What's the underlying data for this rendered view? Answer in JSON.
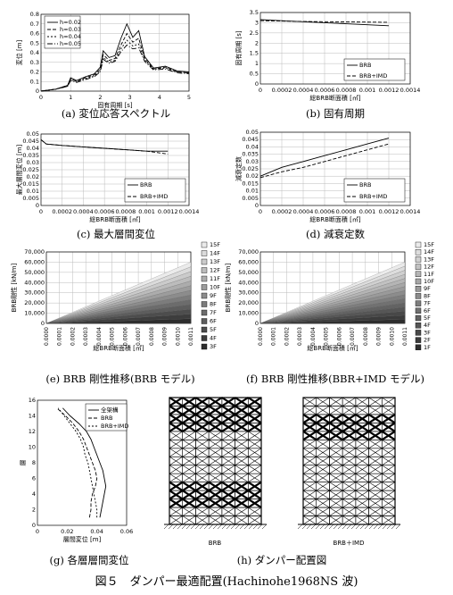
{
  "figure_title": "図５　ダンパー最適配置(Hachinohe1968NS 波)",
  "captions": {
    "a": "(a) 変位応答スペクトル",
    "b": "(b) 固有周期",
    "c": "(c) 最大層間変位",
    "d": "(d) 減衰定数",
    "e": "(e) BRB 剛性推移(BRB モデル)",
    "f": "(f) BRB 剛性推移(BBR+IMD モデル)",
    "g": "(g) 各層層間変位",
    "h": "(h) ダンパー配置図"
  },
  "frame_labels": [
    "BRB",
    "BRB＋IMD"
  ],
  "colors": {
    "grid": "#bbbbbb",
    "line": "#000000"
  },
  "chart_data": [
    {
      "id": "a",
      "type": "line",
      "xlabel": "固有周期 [s]",
      "ylabel": "変位 [m]",
      "xlim": [
        0,
        5
      ],
      "ylim": [
        0,
        0.8
      ],
      "xticks": [
        "0",
        "1",
        "2",
        "3",
        "4",
        "5"
      ],
      "yticks": [
        "0",
        "0.1",
        "0.2",
        "0.3",
        "0.4",
        "0.5",
        "0.6",
        "0.7",
        "0.8"
      ],
      "legend": "top-left",
      "grid": true,
      "series": [
        {
          "name": "h=0.02",
          "x": [
            0,
            0.5,
            0.9,
            1.0,
            1.2,
            1.5,
            1.8,
            2.0,
            2.1,
            2.3,
            2.5,
            2.7,
            2.9,
            3.1,
            3.3,
            3.5,
            3.8,
            4.2,
            4.6,
            5.0
          ],
          "y": [
            0,
            0.02,
            0.06,
            0.14,
            0.11,
            0.15,
            0.18,
            0.25,
            0.42,
            0.35,
            0.37,
            0.55,
            0.7,
            0.56,
            0.63,
            0.36,
            0.24,
            0.26,
            0.21,
            0.2
          ]
        },
        {
          "name": "h=0.03",
          "x": [
            0,
            0.5,
            0.9,
            1.0,
            1.2,
            1.5,
            1.8,
            2.0,
            2.1,
            2.3,
            2.5,
            2.7,
            2.9,
            3.1,
            3.3,
            3.5,
            3.8,
            4.2,
            4.6,
            5.0
          ],
          "y": [
            0,
            0.02,
            0.06,
            0.13,
            0.1,
            0.14,
            0.17,
            0.23,
            0.38,
            0.32,
            0.34,
            0.48,
            0.6,
            0.51,
            0.55,
            0.34,
            0.23,
            0.25,
            0.2,
            0.19
          ]
        },
        {
          "name": "h=0.04",
          "x": [
            0,
            0.5,
            0.9,
            1.0,
            1.2,
            1.5,
            1.8,
            2.0,
            2.1,
            2.3,
            2.5,
            2.7,
            2.9,
            3.1,
            3.3,
            3.5,
            3.8,
            4.2,
            4.6,
            5.0
          ],
          "y": [
            0,
            0.02,
            0.05,
            0.12,
            0.1,
            0.13,
            0.16,
            0.21,
            0.35,
            0.3,
            0.32,
            0.44,
            0.53,
            0.47,
            0.49,
            0.32,
            0.23,
            0.24,
            0.2,
            0.19
          ]
        },
        {
          "name": "h=0.05",
          "x": [
            0,
            0.5,
            0.9,
            1.0,
            1.2,
            1.5,
            1.8,
            2.0,
            2.1,
            2.3,
            2.5,
            2.7,
            2.9,
            3.1,
            3.3,
            3.5,
            3.8,
            4.2,
            4.6,
            5.0
          ],
          "y": [
            0,
            0.02,
            0.05,
            0.11,
            0.09,
            0.12,
            0.15,
            0.2,
            0.33,
            0.29,
            0.31,
            0.41,
            0.48,
            0.44,
            0.45,
            0.31,
            0.22,
            0.23,
            0.19,
            0.18
          ]
        }
      ]
    },
    {
      "id": "b",
      "type": "line",
      "xlabel": "総BRB断面積 [㎡]",
      "ylabel": "固有周期 [s]",
      "xlim": [
        0,
        0.0014
      ],
      "ylim": [
        0,
        3.5
      ],
      "xticks": [
        "0",
        "0.0002",
        "0.0004",
        "0.0006",
        "0.0008",
        "0.001",
        "0.0012",
        "0.0014"
      ],
      "yticks": [
        "0",
        "0.5",
        "1",
        "1.5",
        "2",
        "2.5",
        "3",
        "3.5"
      ],
      "legend": "bottom-right",
      "grid": true,
      "series": [
        {
          "name": "BRB",
          "x": [
            0,
            0.0002,
            0.0004,
            0.0006,
            0.0008,
            0.001,
            0.0012
          ],
          "y": [
            3.15,
            3.1,
            3.05,
            3.0,
            2.95,
            2.9,
            2.85
          ]
        },
        {
          "name": "BRB+IMD",
          "x": [
            0,
            0.0002,
            0.0004,
            0.0006,
            0.0008,
            0.001,
            0.0012
          ],
          "y": [
            3.1,
            3.08,
            3.06,
            3.05,
            3.04,
            3.03,
            3.02
          ]
        }
      ]
    },
    {
      "id": "c",
      "type": "line",
      "xlabel": "総BRB断面積 [㎡]",
      "ylabel": "最大層間変位 [m]",
      "xlim": [
        0,
        0.0014
      ],
      "ylim": [
        0,
        0.05
      ],
      "xticks": [
        "0",
        "0.0002",
        "0.0004",
        "0.0006",
        "0.0008",
        "0.001",
        "0.0012",
        "0.0014"
      ],
      "yticks": [
        "0",
        "0.005",
        "0.01",
        "0.015",
        "0.02",
        "0.025",
        "0.03",
        "0.035",
        "0.04",
        "0.045",
        "0.05"
      ],
      "legend": "bottom-right",
      "grid": true,
      "series": [
        {
          "name": "BRB",
          "x": [
            0,
            5e-05,
            0.0002,
            0.0004,
            0.0006,
            0.0008,
            0.001,
            0.0012
          ],
          "y": [
            0.046,
            0.043,
            0.042,
            0.041,
            0.04,
            0.039,
            0.038,
            0.038
          ]
        },
        {
          "name": "BRB+IMD",
          "x": [
            0,
            5e-05,
            0.0002,
            0.0004,
            0.0006,
            0.0008,
            0.001,
            0.0012
          ],
          "y": [
            0.046,
            0.043,
            0.042,
            0.041,
            0.04,
            0.039,
            0.038,
            0.036
          ]
        }
      ]
    },
    {
      "id": "d",
      "type": "line",
      "xlabel": "総BRB断面積 [㎡]",
      "ylabel": "減衰定数",
      "xlim": [
        0,
        0.0014
      ],
      "ylim": [
        0,
        0.05
      ],
      "xticks": [
        "0",
        "0.0002",
        "0.0004",
        "0.0006",
        "0.0008",
        "0.001",
        "0.0012",
        "0.0014"
      ],
      "yticks": [
        "0",
        "0.005",
        "0.01",
        "0.015",
        "0.02",
        "0.025",
        "0.03",
        "0.035",
        "0.04",
        "0.045",
        "0.05"
      ],
      "legend": "bottom-right",
      "grid": true,
      "series": [
        {
          "name": "BRB",
          "x": [
            0,
            0.0002,
            0.0004,
            0.0006,
            0.0008,
            0.001,
            0.0012
          ],
          "y": [
            0.02,
            0.026,
            0.03,
            0.034,
            0.038,
            0.042,
            0.046
          ]
        },
        {
          "name": "BRB+IMD",
          "x": [
            0,
            0.0002,
            0.0004,
            0.0006,
            0.0008,
            0.001,
            0.0012
          ],
          "y": [
            0.019,
            0.023,
            0.026,
            0.03,
            0.034,
            0.038,
            0.042
          ]
        }
      ]
    },
    {
      "id": "e",
      "type": "area",
      "xlabel": "総BRB断面積 [㎡]",
      "ylabel": "BRB剛性 [kN/m]",
      "xlim": [
        0,
        0.0012
      ],
      "ylim": [
        0,
        70000
      ],
      "xticks": [
        "0.0000",
        "0.0001",
        "0.0002",
        "0.0003",
        "0.0004",
        "0.0005",
        "0.0006",
        "0.0007",
        "0.0008",
        "0.0009",
        "0.0010",
        "0.0011"
      ],
      "yticks": [
        "0",
        "10,000",
        "20,000",
        "30,000",
        "40,000",
        "50,000",
        "60,000",
        "70,000"
      ],
      "legend_entries": [
        "15F",
        "14F",
        "13F",
        "12F",
        "11F",
        "10F",
        "9F",
        "8F",
        "7F",
        "6F",
        "5F",
        "4F",
        "3F"
      ],
      "total_at_xmax": 60000
    },
    {
      "id": "f",
      "type": "area",
      "xlabel": "総BRB断面積 [㎡]",
      "ylabel": "BRB剛性 [kN/m]",
      "xlim": [
        0,
        0.0012
      ],
      "ylim": [
        0,
        70000
      ],
      "xticks": [
        "0.0000",
        "0.0001",
        "0.0002",
        "0.0003",
        "0.0004",
        "0.0005",
        "0.0006",
        "0.0007",
        "0.0008",
        "0.0009",
        "0.0010",
        "0.0011"
      ],
      "yticks": [
        "0",
        "10,000",
        "20,000",
        "30,000",
        "40,000",
        "50,000",
        "60,000",
        "70,000"
      ],
      "legend_entries": [
        "15F",
        "14F",
        "13F",
        "12F",
        "11F",
        "10F",
        "9F",
        "8F",
        "7F",
        "6F",
        "5F",
        "4F",
        "3F",
        "2F",
        "1F"
      ],
      "total_at_xmax": 60000
    },
    {
      "id": "g",
      "type": "line",
      "xlabel": "層間変位 [m]",
      "ylabel": "層",
      "xlim": [
        0,
        0.06
      ],
      "ylim": [
        0,
        16
      ],
      "xticks": [
        "0",
        "0.02",
        "0.04",
        "0.06"
      ],
      "yticks": [
        "0",
        "2",
        "4",
        "6",
        "8",
        "10",
        "12",
        "14",
        "16"
      ],
      "legend": "top-right",
      "grid": false,
      "series": [
        {
          "name": "全架構",
          "x": [
            0.042,
            0.043,
            0.044,
            0.045,
            0.046,
            0.045,
            0.044,
            0.042,
            0.04,
            0.038,
            0.036,
            0.033,
            0.028,
            0.022,
            0.017
          ],
          "y": [
            1,
            2,
            3,
            4,
            5,
            6,
            7,
            8,
            9,
            10,
            11,
            12,
            13,
            14,
            15
          ]
        },
        {
          "name": "BRB",
          "x": [
            0.035,
            0.036,
            0.036,
            0.037,
            0.039,
            0.04,
            0.039,
            0.037,
            0.035,
            0.033,
            0.031,
            0.028,
            0.024,
            0.019,
            0.013
          ],
          "y": [
            1,
            2,
            3,
            4,
            5,
            6,
            7,
            8,
            9,
            10,
            11,
            12,
            13,
            14,
            15
          ]
        },
        {
          "name": "BRB+IMD",
          "x": [
            0.04,
            0.04,
            0.039,
            0.038,
            0.037,
            0.036,
            0.035,
            0.034,
            0.032,
            0.031,
            0.029,
            0.026,
            0.022,
            0.018,
            0.014
          ],
          "y": [
            1,
            2,
            3,
            4,
            5,
            6,
            7,
            8,
            9,
            10,
            11,
            12,
            13,
            14,
            15
          ]
        }
      ]
    }
  ]
}
